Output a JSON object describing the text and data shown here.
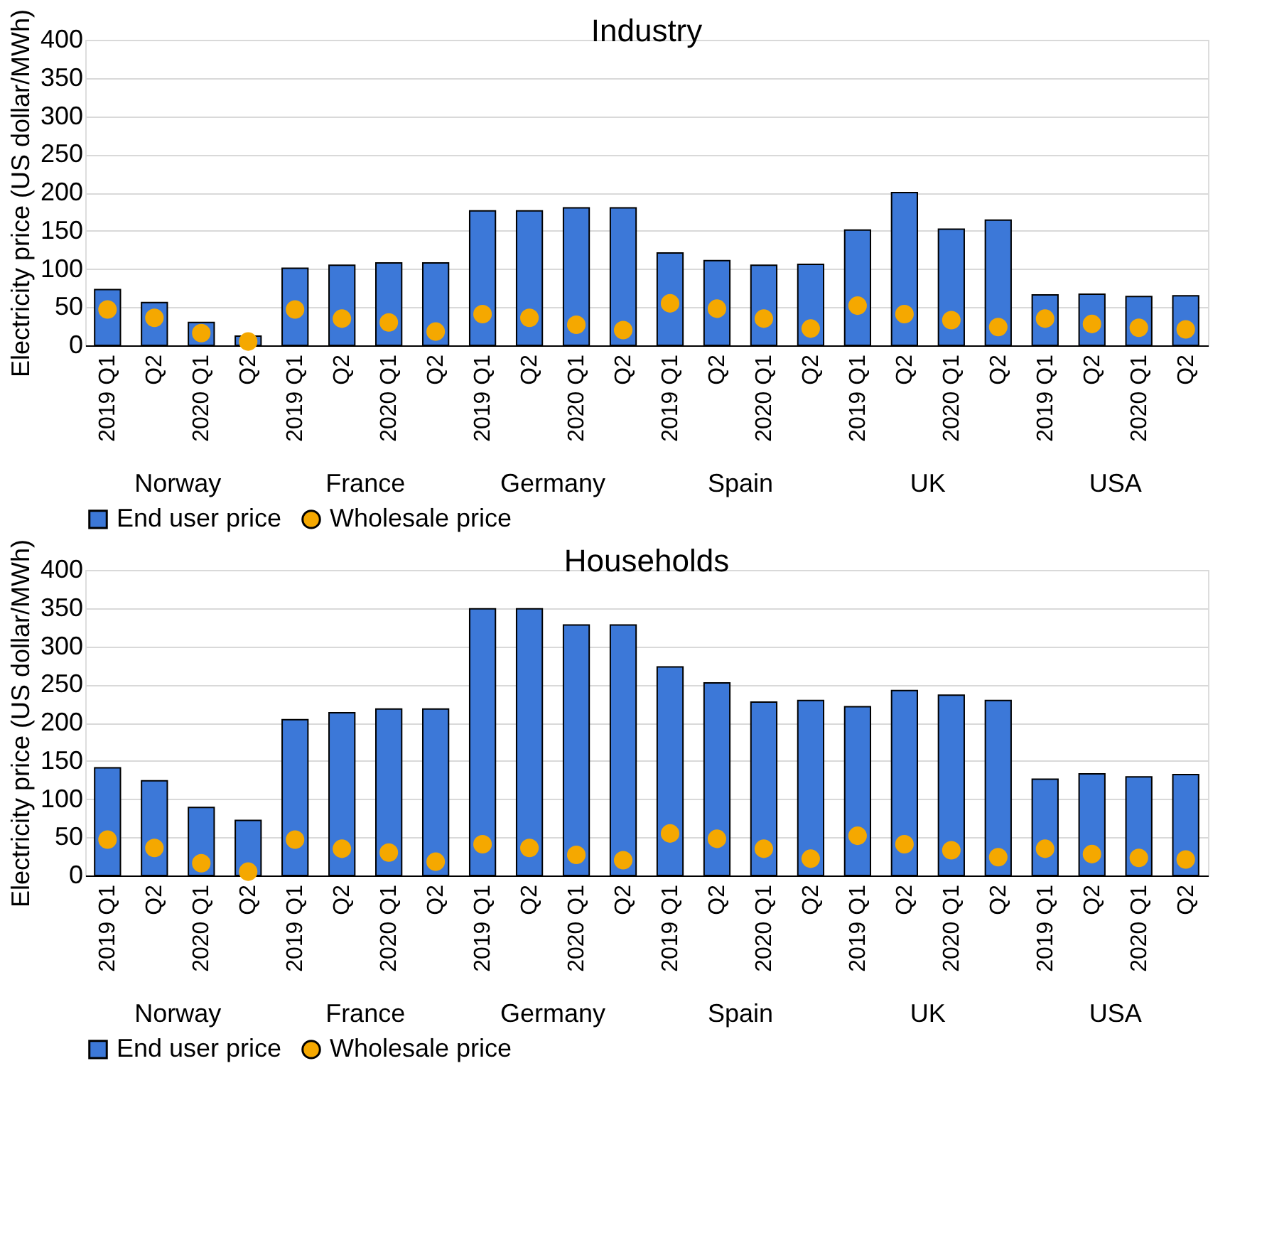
{
  "chart_data": [
    {
      "type": "bar",
      "title": "Industry",
      "ylabel": "Electricity price (US dollar/MWh)",
      "categories": [
        "2019 Q1",
        "Q2",
        "2020 Q1",
        "Q2",
        "2019 Q1",
        "Q2",
        "2020 Q1",
        "Q2",
        "2019 Q1",
        "Q2",
        "2020 Q1",
        "Q2",
        "2019 Q1",
        "Q2",
        "2020 Q1",
        "Q2",
        "2019 Q1",
        "Q2",
        "2020 Q1",
        "Q2",
        "2019 Q1",
        "Q2",
        "2020 Q1",
        "Q2"
      ],
      "annotations": [
        "Norway",
        "France",
        "Germany",
        "Spain",
        "UK",
        "USA"
      ],
      "series": [
        {
          "name": "End user price",
          "color": "#3c78d8",
          "values": [
            73,
            56,
            30,
            12,
            101,
            105,
            108,
            108,
            176,
            176,
            180,
            180,
            121,
            111,
            105,
            106,
            151,
            200,
            152,
            164,
            66,
            67,
            64,
            65
          ]
        },
        {
          "name": "Wholesale price",
          "type": "scatter",
          "marker": "circle",
          "color": "#f5a800",
          "values": [
            47,
            36,
            16,
            5,
            47,
            35,
            30,
            18,
            41,
            36,
            27,
            20,
            55,
            48,
            35,
            22,
            52,
            41,
            33,
            24,
            35,
            28,
            23,
            21
          ]
        }
      ],
      "ylim": [
        0,
        400
      ],
      "yticks": [
        0,
        50,
        100,
        150,
        200,
        250,
        300,
        350,
        400
      ],
      "grid": "y",
      "legend": "bottom"
    },
    {
      "type": "bar",
      "title": "Households",
      "ylabel": "Electricity price (US dollar/MWh)",
      "categories": [
        "2019 Q1",
        "Q2",
        "2020 Q1",
        "Q2",
        "2019 Q1",
        "Q2",
        "2020 Q1",
        "Q2",
        "2019 Q1",
        "Q2",
        "2020 Q1",
        "Q2",
        "2019 Q1",
        "Q2",
        "2020 Q1",
        "Q2",
        "2019 Q1",
        "Q2",
        "2020 Q1",
        "Q2",
        "2019 Q1",
        "Q2",
        "2020 Q1",
        "Q2"
      ],
      "annotations": [
        "Norway",
        "France",
        "Germany",
        "Spain",
        "UK",
        "USA"
      ],
      "series": [
        {
          "name": "End user price",
          "color": "#3c78d8",
          "values": [
            141,
            124,
            89,
            72,
            204,
            213,
            218,
            218,
            349,
            349,
            328,
            328,
            273,
            252,
            227,
            229,
            221,
            242,
            236,
            229,
            126,
            133,
            129,
            132
          ]
        },
        {
          "name": "Wholesale price",
          "type": "scatter",
          "marker": "circle",
          "color": "#f5a800",
          "values": [
            47,
            36,
            16,
            5,
            47,
            35,
            30,
            18,
            41,
            36,
            27,
            20,
            55,
            48,
            35,
            22,
            52,
            41,
            33,
            24,
            35,
            28,
            23,
            21
          ]
        }
      ],
      "ylim": [
        0,
        400
      ],
      "yticks": [
        0,
        50,
        100,
        150,
        200,
        250,
        300,
        350,
        400
      ],
      "grid": "y",
      "legend": "bottom"
    }
  ]
}
